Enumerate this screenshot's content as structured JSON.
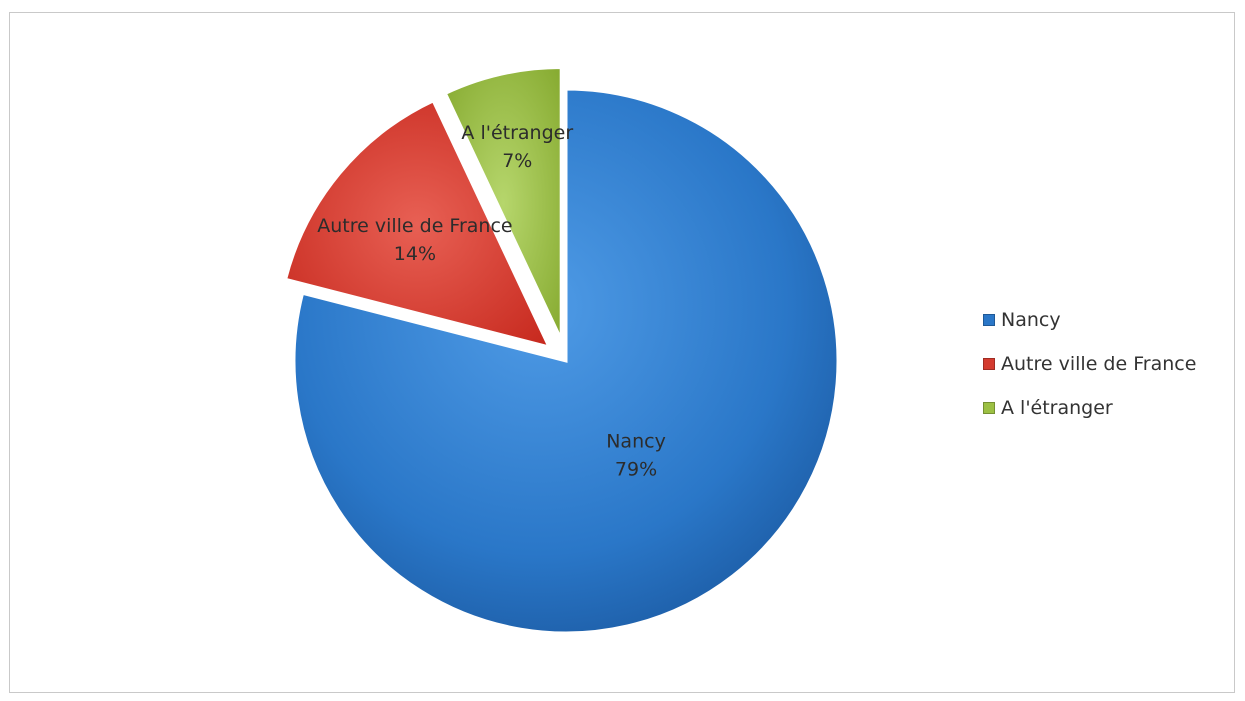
{
  "chart_data": {
    "type": "pie",
    "title": "",
    "slices": [
      {
        "label": "Nancy",
        "value": 79,
        "value_label": "79%",
        "color": "#2a77c8",
        "exploded": false
      },
      {
        "label": "Autre ville de France",
        "value": 14,
        "value_label": "14%",
        "color": "#d43b2f",
        "exploded": true
      },
      {
        "label": "A l'étranger",
        "value": 7,
        "value_label": "7%",
        "color": "#9cc043",
        "exploded": true
      }
    ],
    "legend": {
      "position": "right",
      "entries": [
        "Nancy",
        "Autre ville de France",
        "A l'étranger"
      ]
    }
  }
}
